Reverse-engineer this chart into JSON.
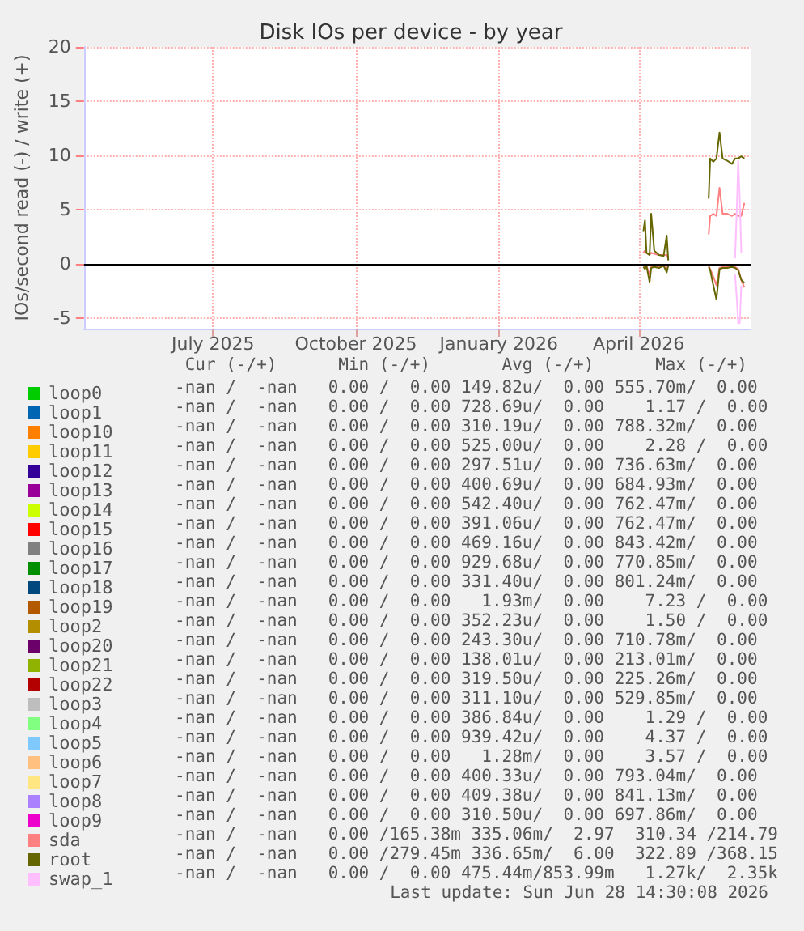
{
  "chart_data": {
    "type": "line",
    "title": "Disk IOs per device - by year",
    "ylabel": "IOs/second read (-) / write (+)",
    "xlim": [
      "2025-04-09",
      "2026-06-12"
    ],
    "ylim": [
      -6,
      20
    ],
    "yticks": [
      -5,
      0,
      5,
      10,
      15,
      20
    ],
    "xticks": [
      {
        "value": "2025-07-01",
        "label": "July 2025"
      },
      {
        "value": "2025-10-01",
        "label": "October 2025"
      },
      {
        "value": "2026-01-01",
        "label": "January 2026"
      },
      {
        "value": "2026-04-01",
        "label": "April 2026"
      }
    ],
    "grid": true,
    "legend": "bottom",
    "marker": "none",
    "line_style": "solid",
    "ref_lines": [
      {
        "axis": "y",
        "value": 0,
        "color": "#000000"
      }
    ],
    "series": [
      {
        "name": "loop0",
        "color": "#00cc00"
      },
      {
        "name": "loop1",
        "color": "#0066b3"
      },
      {
        "name": "loop10",
        "color": "#ff8000"
      },
      {
        "name": "loop11",
        "color": "#ffcc00"
      },
      {
        "name": "loop12",
        "color": "#330099"
      },
      {
        "name": "loop13",
        "color": "#990099"
      },
      {
        "name": "loop14",
        "color": "#ccff00"
      },
      {
        "name": "loop15",
        "color": "#ff0000"
      },
      {
        "name": "loop16",
        "color": "#808080"
      },
      {
        "name": "loop17",
        "color": "#008f00"
      },
      {
        "name": "loop18",
        "color": "#00487d"
      },
      {
        "name": "loop19",
        "color": "#b35a00"
      },
      {
        "name": "loop2",
        "color": "#b38f00"
      },
      {
        "name": "loop20",
        "color": "#6b006b"
      },
      {
        "name": "loop21",
        "color": "#8fb300"
      },
      {
        "name": "loop22",
        "color": "#b30000"
      },
      {
        "name": "loop3",
        "color": "#bebebe"
      },
      {
        "name": "loop4",
        "color": "#80ff80"
      },
      {
        "name": "loop5",
        "color": "#80c9ff"
      },
      {
        "name": "loop6",
        "color": "#ffc080"
      },
      {
        "name": "loop7",
        "color": "#ffe680"
      },
      {
        "name": "loop8",
        "color": "#aa80ff"
      },
      {
        "name": "loop9",
        "color": "#ee00cc"
      },
      {
        "name": "sda",
        "color": "#ff8080",
        "x": [
          "2026-04-04",
          "2026-04-05",
          "2026-04-06",
          "2026-04-08",
          "2026-04-09",
          "2026-04-11",
          "2026-04-14",
          "2026-04-17",
          "2026-04-19",
          "2026-04-20",
          "2026-05-01",
          "2026-05-16",
          "2026-05-17",
          "2026-05-19",
          "2026-05-21",
          "2026-05-23",
          "2026-05-25",
          "2026-05-28",
          "2026-05-31",
          "2026-06-02",
          "2026-06-04",
          "2026-06-06",
          "2026-06-08"
        ],
        "values": [
          1.0,
          1.2,
          1.0,
          0.8,
          1.0,
          0.9,
          0.8,
          0.8,
          0.8,
          0.5,
          null,
          2.7,
          4.4,
          4.6,
          4.4,
          7.0,
          4.6,
          4.6,
          4.4,
          4.6,
          4.4,
          4.4,
          5.6
        ]
      },
      {
        "name": "root",
        "color": "#666600",
        "x": [
          "2026-04-04",
          "2026-04-05",
          "2026-04-06",
          "2026-04-08",
          "2026-04-09",
          "2026-04-11",
          "2026-04-14",
          "2026-04-17",
          "2026-04-19",
          "2026-04-20",
          "2026-05-01",
          "2026-05-16",
          "2026-05-17",
          "2026-05-19",
          "2026-05-21",
          "2026-05-23",
          "2026-05-25",
          "2026-05-28",
          "2026-05-31",
          "2026-06-02",
          "2026-06-04",
          "2026-06-06",
          "2026-06-08"
        ],
        "values": [
          3.0,
          4.0,
          1.0,
          0.8,
          4.6,
          1.2,
          0.8,
          0.7,
          2.6,
          0.3,
          null,
          6.0,
          9.7,
          9.4,
          9.7,
          12.1,
          9.7,
          9.5,
          9.2,
          9.7,
          9.7,
          9.9,
          9.7
        ]
      },
      {
        "name": "swap_1",
        "color": "#ffbfff",
        "x": [
          "2026-06-02",
          "2026-06-03",
          "2026-06-04",
          "2026-06-05",
          "2026-06-06"
        ],
        "values": [
          0.5,
          4.5,
          9.5,
          6.0,
          1.0
        ]
      },
      {
        "color": "#ff8080",
        "x": [
          "2026-04-04",
          "2026-04-05",
          "2026-04-06",
          "2026-04-08",
          "2026-04-09",
          "2026-04-11",
          "2026-04-14",
          "2026-04-17",
          "2026-04-19",
          "2026-04-20",
          "2026-05-01",
          "2026-05-16",
          "2026-05-17",
          "2026-05-19",
          "2026-05-21",
          "2026-05-23",
          "2026-05-25",
          "2026-05-28",
          "2026-05-31",
          "2026-06-02",
          "2026-06-04",
          "2026-06-06",
          "2026-06-08"
        ],
        "values": [
          -0.2,
          -0.3,
          -0.2,
          -1.0,
          -0.3,
          -0.2,
          -0.3,
          -0.2,
          -0.5,
          -0.1,
          null,
          -0.2,
          -0.5,
          -1.2,
          -2.0,
          -0.4,
          -0.3,
          -0.3,
          -0.2,
          -0.3,
          -0.5,
          -1.5,
          -2.2
        ]
      },
      {
        "color": "#666600",
        "x": [
          "2026-04-04",
          "2026-04-05",
          "2026-04-06",
          "2026-04-08",
          "2026-04-09",
          "2026-04-11",
          "2026-04-14",
          "2026-04-17",
          "2026-04-19",
          "2026-04-20",
          "2026-05-01",
          "2026-05-16",
          "2026-05-17",
          "2026-05-19",
          "2026-05-21",
          "2026-05-23",
          "2026-05-25",
          "2026-05-28",
          "2026-05-31",
          "2026-06-02",
          "2026-06-04",
          "2026-06-06",
          "2026-06-08"
        ],
        "values": [
          -0.3,
          -0.5,
          -0.2,
          -1.7,
          -0.4,
          -0.3,
          -0.4,
          -0.2,
          -0.8,
          -0.2,
          null,
          -0.3,
          -0.6,
          -2.0,
          -3.3,
          -0.5,
          -0.4,
          -0.4,
          -0.3,
          -0.4,
          -0.6,
          -1.5,
          -1.8
        ]
      },
      {
        "color": "#ffbfff",
        "x": [
          "2026-06-02",
          "2026-06-03",
          "2026-06-04",
          "2026-06-05",
          "2026-06-06"
        ],
        "values": [
          -1.0,
          -3.0,
          -5.5,
          -5.5,
          -2.0
        ]
      }
    ],
    "annotations": [
      " Cur (-/+)      Min (-/+)       Avg (-/+)      Max (-/+)",
      "-nan /  -nan   0.00 /  0.00 149.82u/  0.00 555.70m/  0.00",
      "-nan /  -nan   0.00 /  0.00 728.69u/  0.00    1.17 /  0.00",
      "-nan /  -nan   0.00 /  0.00 310.19u/  0.00 788.32m/  0.00",
      "-nan /  -nan   0.00 /  0.00 525.00u/  0.00    2.28 /  0.00",
      "-nan /  -nan   0.00 /  0.00 297.51u/  0.00 736.63m/  0.00",
      "-nan /  -nan   0.00 /  0.00 400.69u/  0.00 684.93m/  0.00",
      "-nan /  -nan   0.00 /  0.00 542.40u/  0.00 762.47m/  0.00",
      "-nan /  -nan   0.00 /  0.00 391.06u/  0.00 762.47m/  0.00",
      "-nan /  -nan   0.00 /  0.00 469.16u/  0.00 843.42m/  0.00",
      "-nan /  -nan   0.00 /  0.00 929.68u/  0.00 770.85m/  0.00",
      "-nan /  -nan   0.00 /  0.00 331.40u/  0.00 801.24m/  0.00",
      "-nan /  -nan   0.00 /  0.00   1.93m/  0.00    7.23 /  0.00",
      "-nan /  -nan   0.00 /  0.00 352.23u/  0.00    1.50 /  0.00",
      "-nan /  -nan   0.00 /  0.00 243.30u/  0.00 710.78m/  0.00",
      "-nan /  -nan   0.00 /  0.00 138.01u/  0.00 213.01m/  0.00",
      "-nan /  -nan   0.00 /  0.00 319.50u/  0.00 225.26m/  0.00",
      "-nan /  -nan   0.00 /  0.00 311.10u/  0.00 529.85m/  0.00",
      "-nan /  -nan   0.00 /  0.00 386.84u/  0.00    1.29 /  0.00",
      "-nan /  -nan   0.00 /  0.00 939.42u/  0.00    4.37 /  0.00",
      "-nan /  -nan   0.00 /  0.00   1.28m/  0.00    3.57 /  0.00",
      "-nan /  -nan   0.00 /  0.00 400.33u/  0.00 793.04m/  0.00",
      "-nan /  -nan   0.00 /  0.00 409.38u/  0.00 841.13m/  0.00",
      "-nan /  -nan   0.00 /  0.00 310.50u/  0.00 697.86m/  0.00",
      "-nan /  -nan   0.00 /165.38m 335.06m/  2.97  310.34 /214.79",
      "-nan /  -nan   0.00 /279.45m 336.65m/  6.00  322.89 /368.15",
      "-nan /  -nan   0.00 /  0.00 475.44m/853.99m   1.27k/  2.35k",
      "Last update: Sun Jun 28 14:30:08 2026"
    ]
  }
}
